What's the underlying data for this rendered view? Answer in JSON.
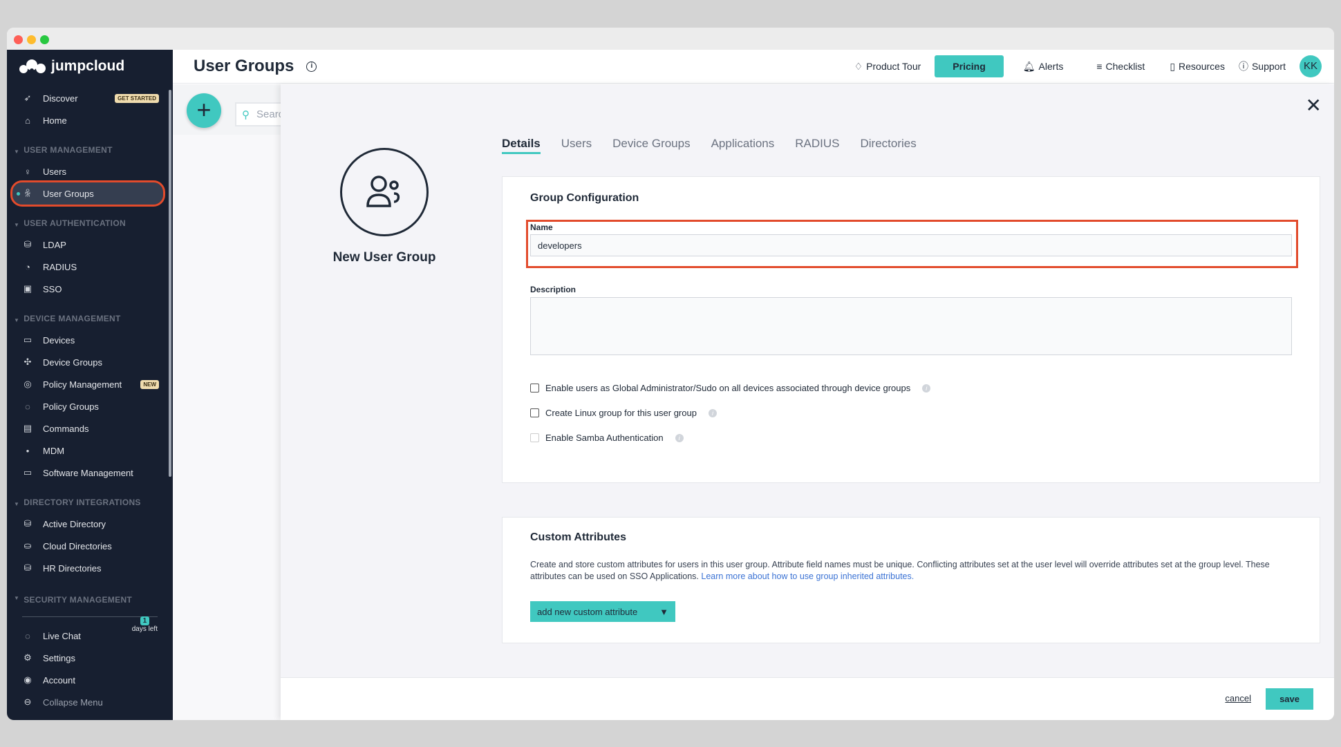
{
  "brand": {
    "name": "jumpcloud",
    "accent": "#40c8c0",
    "highlight": "#e24b2c"
  },
  "sidebar": {
    "top": [
      {
        "label": "Discover",
        "icon": "rocket-icon",
        "badge": "GET STARTED"
      },
      {
        "label": "Home",
        "icon": "home-icon"
      }
    ],
    "sections": [
      {
        "title": "USER MANAGEMENT",
        "items": [
          {
            "label": "Users",
            "icon": "user-icon"
          },
          {
            "label": "User Groups",
            "icon": "user-group-icon",
            "active": true
          }
        ]
      },
      {
        "title": "USER AUTHENTICATION",
        "items": [
          {
            "label": "LDAP",
            "icon": "ldap-icon"
          },
          {
            "label": "RADIUS",
            "icon": "radius-icon"
          },
          {
            "label": "SSO",
            "icon": "sso-icon"
          }
        ]
      },
      {
        "title": "DEVICE MANAGEMENT",
        "items": [
          {
            "label": "Devices",
            "icon": "devices-icon"
          },
          {
            "label": "Device Groups",
            "icon": "device-groups-icon"
          },
          {
            "label": "Policy Management",
            "icon": "policy-icon",
            "badge": "NEW"
          },
          {
            "label": "Policy Groups",
            "icon": "policy-groups-icon"
          },
          {
            "label": "Commands",
            "icon": "commands-icon"
          },
          {
            "label": "MDM",
            "icon": "apple-icon"
          },
          {
            "label": "Software Management",
            "icon": "laptop-icon"
          }
        ]
      },
      {
        "title": "DIRECTORY INTEGRATIONS",
        "items": [
          {
            "label": "Active Directory",
            "icon": "ad-icon"
          },
          {
            "label": "Cloud Directories",
            "icon": "cloud-dir-icon"
          },
          {
            "label": "HR Directories",
            "icon": "hr-dir-icon"
          }
        ]
      },
      {
        "title": "SECURITY MANAGEMENT",
        "items": []
      }
    ],
    "bottom": [
      {
        "label": "Live Chat",
        "icon": "chat-icon"
      },
      {
        "label": "Settings",
        "icon": "gear-icon"
      },
      {
        "label": "Account",
        "icon": "account-icon"
      },
      {
        "label": "Collapse Menu",
        "icon": "collapse-icon"
      }
    ],
    "trial": {
      "days": "1",
      "text": "days left"
    }
  },
  "header": {
    "title": "User Groups",
    "nav": [
      "Product Tour",
      "Pricing",
      "Alerts",
      "Checklist",
      "Resources",
      "Support"
    ],
    "avatar": "KK"
  },
  "list": {
    "search_placeholder": "Search"
  },
  "drawer": {
    "heading": "New User Group",
    "tabs": [
      "Details",
      "Users",
      "Device Groups",
      "Applications",
      "RADIUS",
      "Directories"
    ],
    "config": {
      "title": "Group Configuration",
      "name_label": "Name",
      "name_value": "developers",
      "description_label": "Description",
      "description_value": "",
      "checkboxes": [
        {
          "label": "Enable users as Global Administrator/Sudo on all devices associated through device groups",
          "checked": false
        },
        {
          "label": "Create Linux group for this user group",
          "checked": false
        },
        {
          "label": "Enable Samba Authentication",
          "checked": false,
          "disabled": true
        }
      ]
    },
    "custom": {
      "title": "Custom Attributes",
      "text": "Create and store custom attributes for users in this user group. Attribute field names must be unique. Conflicting attributes set at the user level will override attributes set at the group level. These attributes can be used on SSO Applications. ",
      "link": "Learn more about how to use group inherited attributes.",
      "button": "add new custom attribute"
    },
    "footer": {
      "cancel": "cancel",
      "save": "save"
    }
  }
}
